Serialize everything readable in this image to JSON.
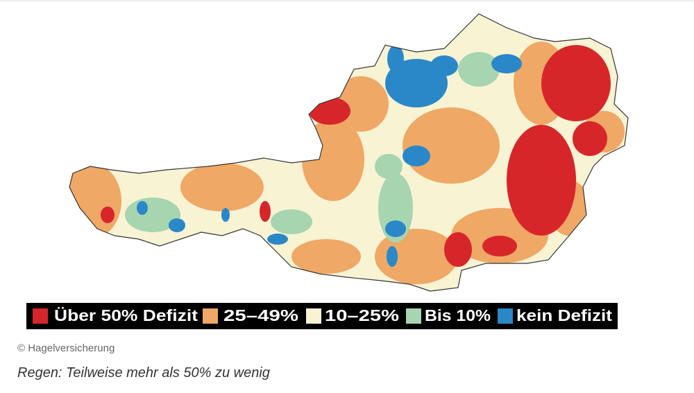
{
  "legend": [
    {
      "label": "Über 50% Defizit",
      "color": "#d7262a"
    },
    {
      "label": "25–49%",
      "color": "#efa865"
    },
    {
      "label": "10–25%",
      "color": "#f7f3d3"
    },
    {
      "label": "Bis 10%",
      "color": "#a6d5b0"
    },
    {
      "label": "kein Defizit",
      "color": "#2a88c8"
    }
  ],
  "credit": "© Hagelversicherung",
  "caption": "Regen: Teilweise mehr als 50% zu wenig"
}
